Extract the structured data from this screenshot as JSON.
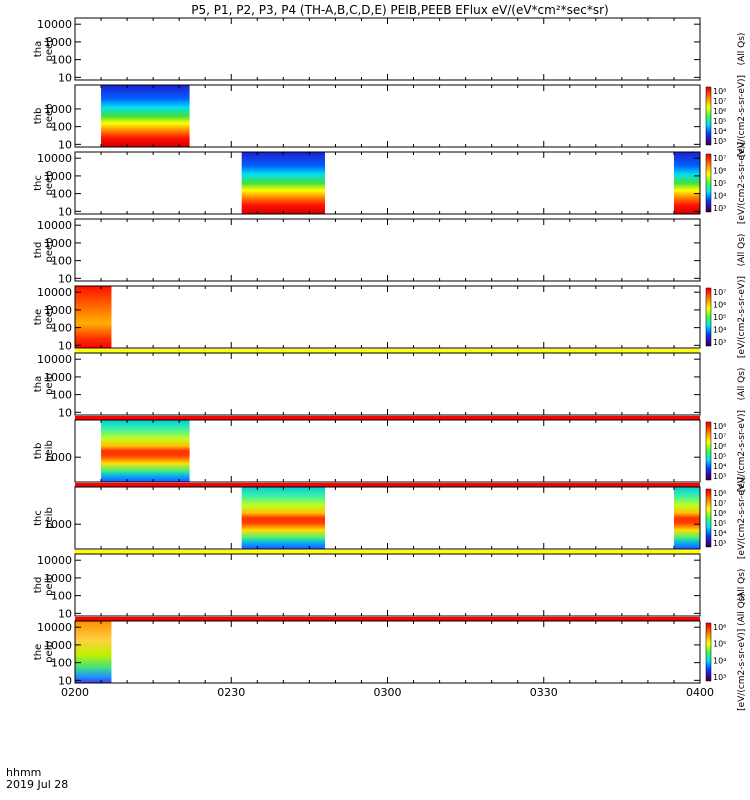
{
  "chart_data": {
    "type": "heatmap",
    "title": "P5, P1, P2, P3, P4 (TH-A,B,C,D,E) PEIB,PEEB EFlux eV/(eV*cm²*sec*sr)",
    "x_axis": {
      "ticks": [
        "0200",
        "0230",
        "0300",
        "0330",
        "0400"
      ],
      "range_hhmm": [
        "0200",
        "0400"
      ],
      "label_line1": "hhmm",
      "label_line2": "2019 Jul 28"
    },
    "y_scale": "log",
    "panels": [
      {
        "id": "tha-peeb",
        "probe": "tha",
        "product": "peeb",
        "ylabel": [
          "tha",
          "peeb"
        ],
        "yticks": [
          "10",
          "100",
          "1000",
          "10000"
        ],
        "segments": [],
        "colorbar": null,
        "side_label": "(All Qs)"
      },
      {
        "id": "thb-peeb",
        "probe": "thb",
        "product": "peeb",
        "ylabel": [
          "thb",
          "peeb"
        ],
        "yticks": [
          "10",
          "100",
          "1000"
        ],
        "segments": [
          {
            "start_hhmm": "0205",
            "end_hhmm": "0222",
            "style": "electron"
          }
        ],
        "colorbar": {
          "ticks": [
            "10⁸",
            "10⁷",
            "10⁶",
            "10⁵",
            "10⁴",
            "10³"
          ]
        },
        "side_label": "[eV/(cm2-s-sr-eV)]"
      },
      {
        "id": "thc-peeb",
        "probe": "thc",
        "product": "peeb",
        "ylabel": [
          "thc",
          "peeb"
        ],
        "yticks": [
          "10",
          "100",
          "1000",
          "10000"
        ],
        "segments": [
          {
            "start_hhmm": "0232",
            "end_hhmm": "0248",
            "style": "electron"
          },
          {
            "start_hhmm": "0355",
            "end_hhmm": "0400",
            "style": "electron"
          }
        ],
        "colorbar": {
          "ticks": [
            "10⁷",
            "10⁶",
            "10⁵",
            "10⁴",
            "10³"
          ]
        },
        "side_label": "[eV/(cm2-s-sr-eV)]"
      },
      {
        "id": "thd-peeb",
        "probe": "thd",
        "product": "peeb",
        "ylabel": [
          "thd",
          "peeb"
        ],
        "yticks": [
          "10",
          "100",
          "1000",
          "10000"
        ],
        "segments": [],
        "colorbar": null,
        "side_label": "(All Qs)"
      },
      {
        "id": "the-peeb",
        "probe": "the",
        "product": "peeb",
        "ylabel": [
          "the",
          "peeb"
        ],
        "yticks": [
          "10",
          "100",
          "1000",
          "10000"
        ],
        "segments": [
          {
            "start_hhmm": "0200",
            "end_hhmm": "0207",
            "style": "electron-hot"
          }
        ],
        "colorbar": {
          "ticks": [
            "10⁷",
            "10⁶",
            "10⁵",
            "10⁴",
            "10³"
          ]
        },
        "side_label": "[eV/(cm2-s-sr-eV)]"
      },
      {
        "id": "tha-peib",
        "probe": "tha",
        "product": "peib",
        "ylabel": [
          "tha",
          "peib"
        ],
        "yticks": [
          "10",
          "100",
          "1000",
          "10000"
        ],
        "segments": [],
        "colorbar": null,
        "side_label": "(All Qs)",
        "flag_above": "#ffff00"
      },
      {
        "id": "thb-peib",
        "probe": "thb",
        "product": "peib",
        "ylabel": [
          "thb",
          "peib"
        ],
        "yticks": [
          "1000"
        ],
        "segments": [
          {
            "start_hhmm": "0205",
            "end_hhmm": "0222",
            "style": "ion"
          }
        ],
        "colorbar": {
          "ticks": [
            "10⁸",
            "10⁷",
            "10⁶",
            "10⁵",
            "10⁴",
            "10³"
          ]
        },
        "side_label": "[eV/(cm2-s-sr-eV)]",
        "flag_above": "#ff0000"
      },
      {
        "id": "thc-peib",
        "probe": "thc",
        "product": "peib",
        "ylabel": [
          "thc",
          "peib"
        ],
        "yticks": [
          "1000"
        ],
        "segments": [
          {
            "start_hhmm": "0232",
            "end_hhmm": "0248",
            "style": "ion"
          },
          {
            "start_hhmm": "0355",
            "end_hhmm": "0400",
            "style": "ion"
          }
        ],
        "colorbar": {
          "ticks": [
            "10⁸",
            "10⁷",
            "10⁶",
            "10⁵",
            "10⁴",
            "10³"
          ]
        },
        "side_label": "[eV/(cm2-s-sr-eV)]",
        "flag_above": "#ff0000"
      },
      {
        "id": "thd-peib",
        "probe": "thd",
        "product": "peib",
        "ylabel": [
          "thd",
          "peib"
        ],
        "yticks": [
          "10",
          "100",
          "1000",
          "10000"
        ],
        "segments": [],
        "colorbar": null,
        "side_label": "(All Qs)",
        "flag_above": "#ffff00"
      },
      {
        "id": "the-peib",
        "probe": "the",
        "product": "peib",
        "ylabel": [
          "the",
          "peib"
        ],
        "yticks": [
          "10",
          "100",
          "1000",
          "10000"
        ],
        "segments": [
          {
            "start_hhmm": "0200",
            "end_hhmm": "0207",
            "style": "ion-warm"
          }
        ],
        "colorbar": {
          "ticks": [
            "10⁶",
            "10⁵",
            "10⁴",
            "10³"
          ]
        },
        "side_label": "[eV/(cm2-s-sr-eV)] (All Qs)",
        "flag_above": "#ff0000"
      }
    ]
  }
}
